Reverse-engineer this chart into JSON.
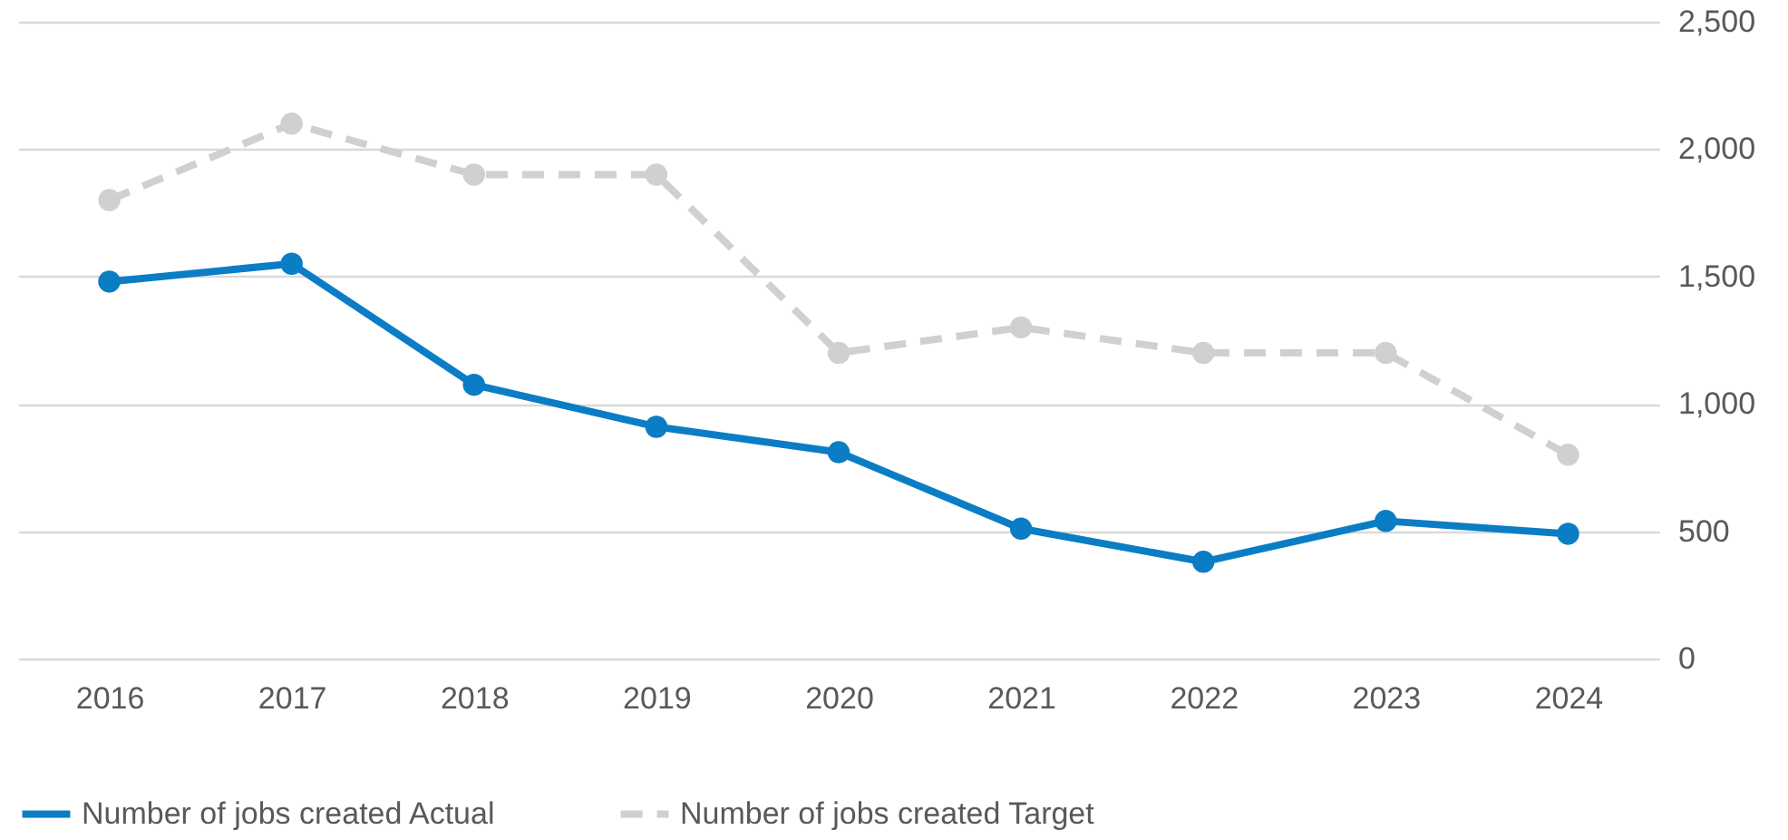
{
  "chart_data": {
    "type": "line",
    "categories": [
      "2016",
      "2017",
      "2018",
      "2019",
      "2020",
      "2021",
      "2022",
      "2023",
      "2024"
    ],
    "series": [
      {
        "name": "Number of jobs created Actual",
        "color": "#0b7dc4",
        "line_style": "solid",
        "values": [
          1480,
          1550,
          1075,
          910,
          810,
          510,
          380,
          540,
          490
        ]
      },
      {
        "name": "Number of jobs created Target",
        "color": "#d0d0d0",
        "line_style": "dashed",
        "values": [
          1800,
          2100,
          1900,
          1900,
          1200,
          1300,
          1200,
          1200,
          800
        ]
      }
    ],
    "ylim": [
      0,
      2500
    ],
    "yticks": [
      0,
      {
        "value": 500,
        "label": "500"
      },
      {
        "value": 1000,
        "label": "1,000"
      },
      {
        "value": 1500,
        "label": "1,500"
      },
      {
        "value": 2000,
        "label": "2,000"
      },
      {
        "value": 2500,
        "label": "2,500"
      }
    ],
    "grid": "y",
    "legend": "bottom",
    "marker": "circle"
  }
}
